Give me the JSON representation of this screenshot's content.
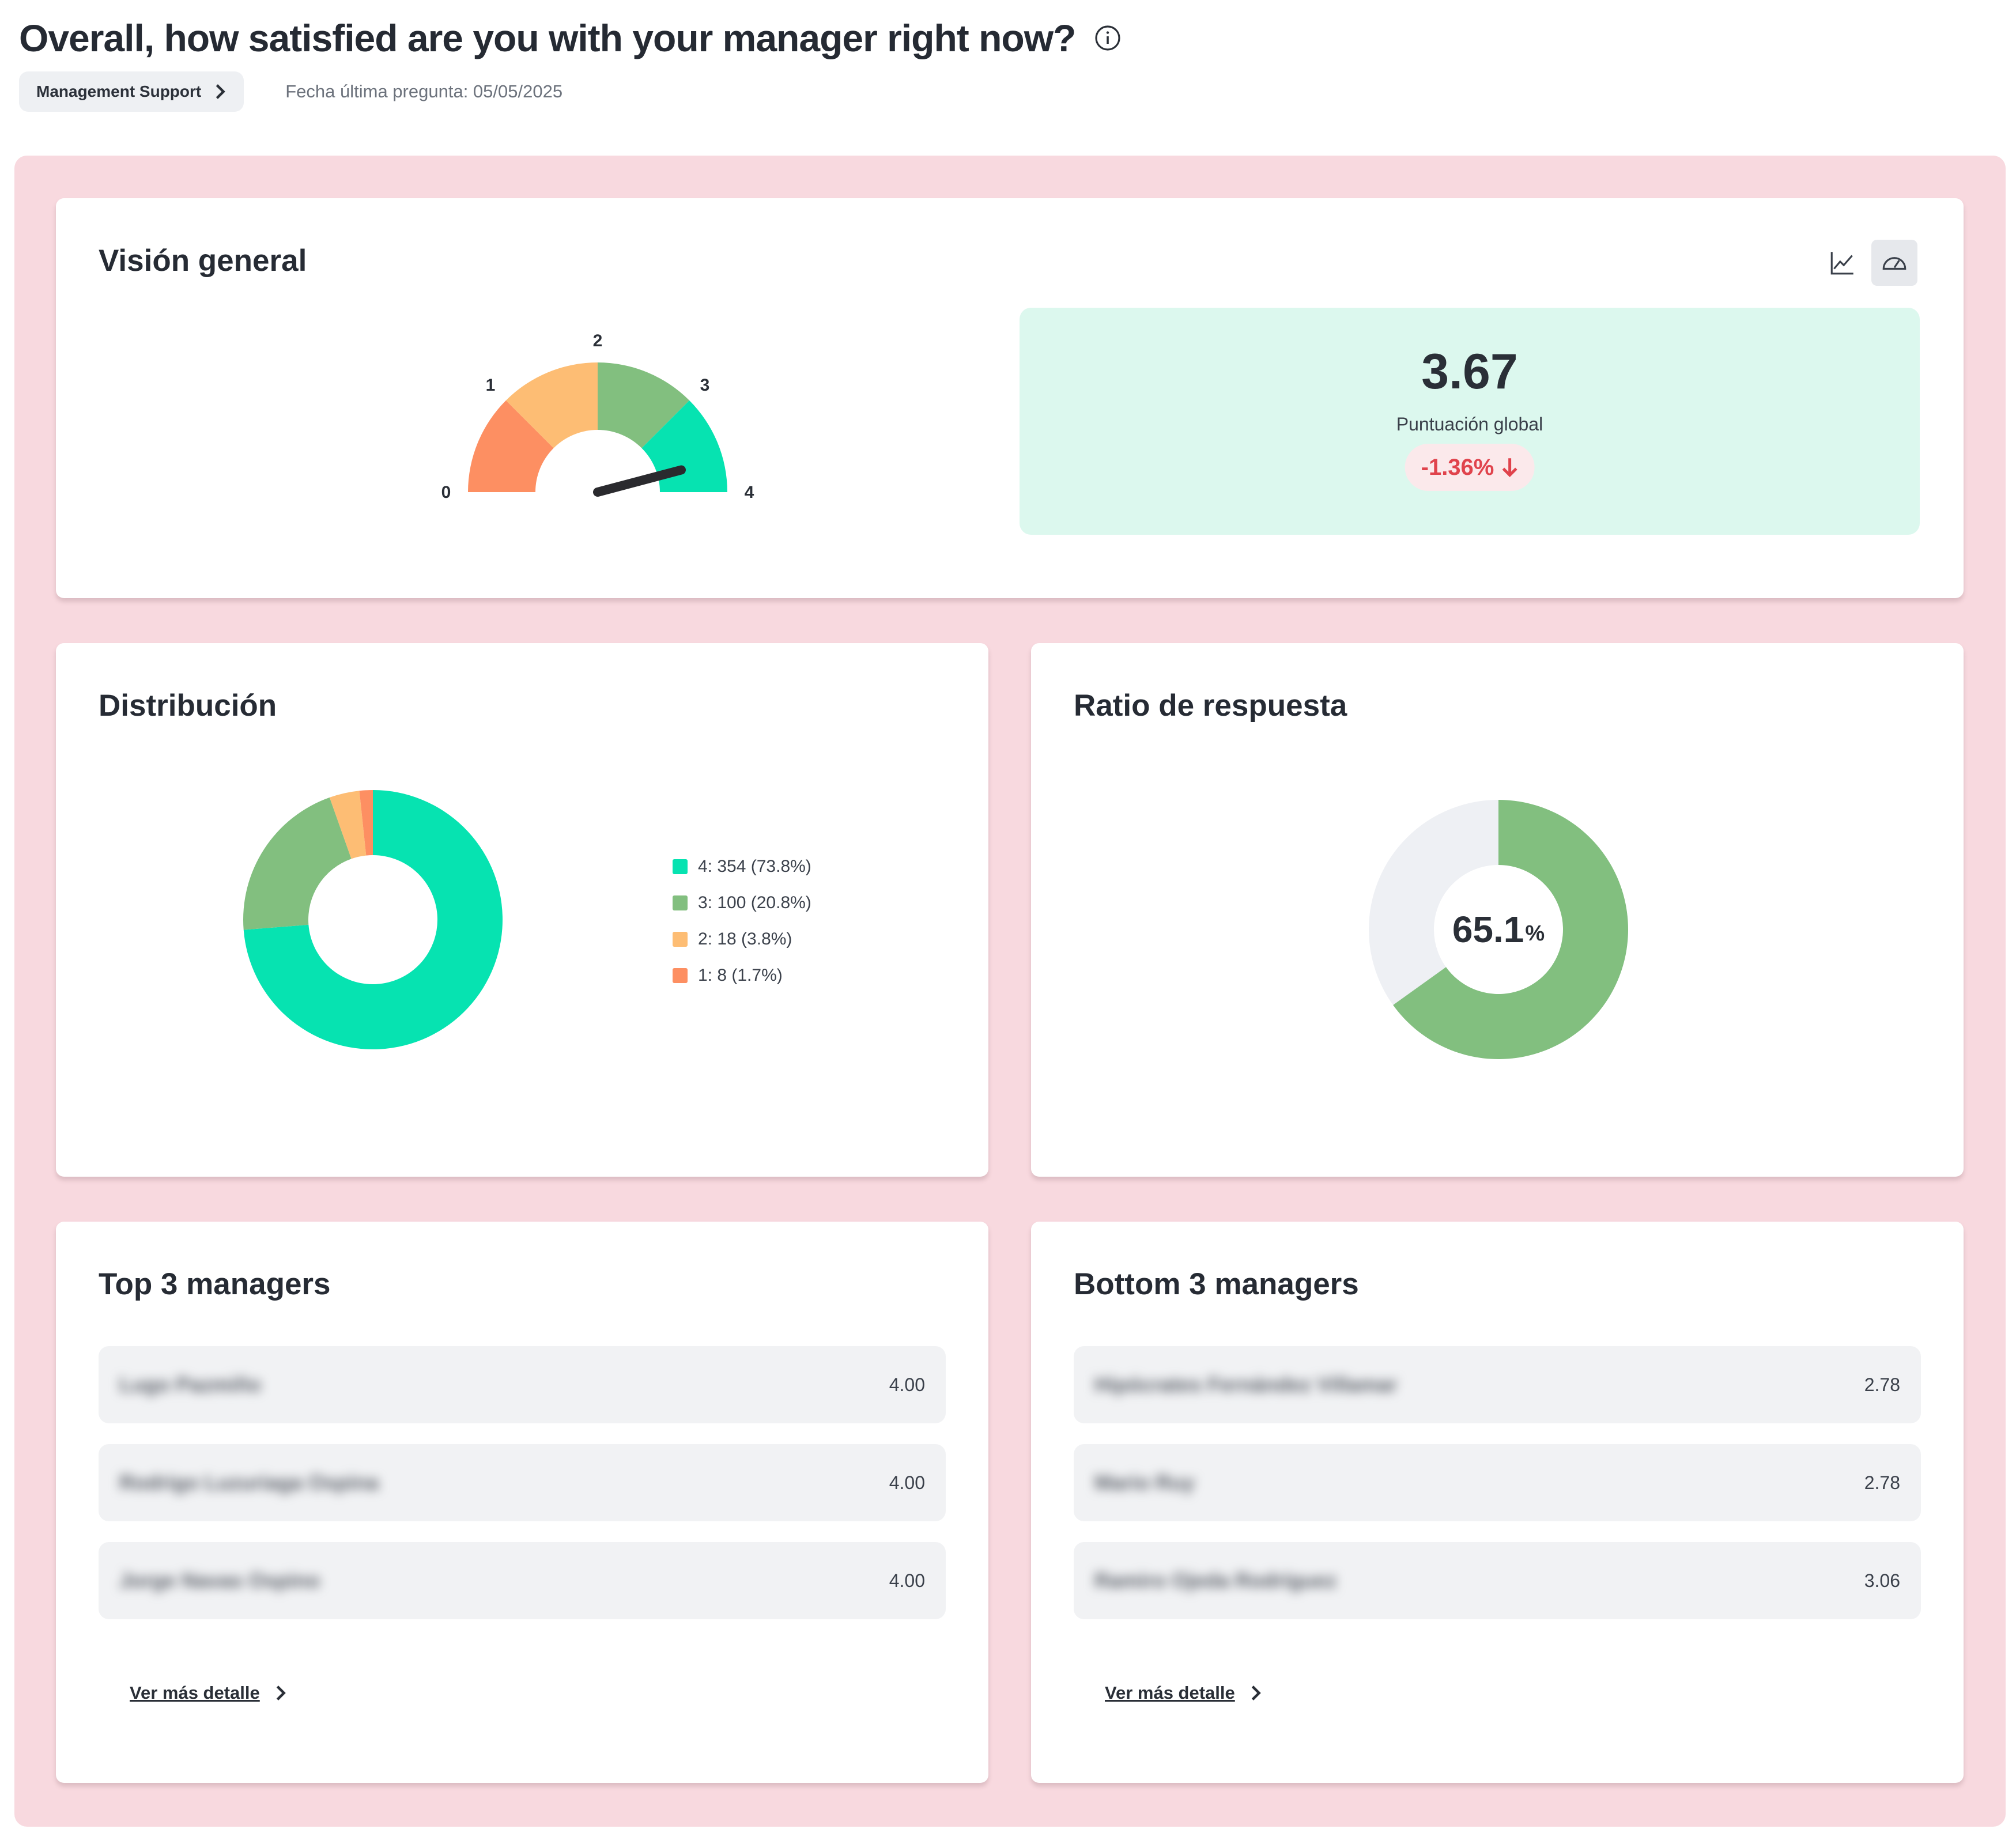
{
  "header": {
    "title": "Overall, how satisfied are you with your manager right now?",
    "category_chip": "Management Support",
    "last_question_date": "Fecha última pregunta: 05/05/2025"
  },
  "overview": {
    "title": "Visión general",
    "score": "3.67",
    "score_label": "Puntuación global",
    "change": "-1.36%",
    "gauge": {
      "min": 0,
      "max": 4,
      "value": 3.67,
      "ticks": [
        "0",
        "1",
        "2",
        "3",
        "4"
      ],
      "segment_colors": [
        "#fd8f62",
        "#fdbd74",
        "#82bf7f",
        "#06e3b1"
      ]
    }
  },
  "distribution": {
    "title": "Distribución",
    "legend": [
      "4: 354 (73.8%)",
      "3: 100 (20.8%)",
      "2: 18 (3.8%)",
      "1: 8 (1.7%)"
    ]
  },
  "response_rate": {
    "title": "Ratio de respuesta",
    "value": "65.1",
    "unit": "%",
    "fraction": 0.651,
    "colors": {
      "filled": "#82bf7f",
      "empty": "#eef0f4"
    }
  },
  "top_managers": {
    "title": "Top 3 managers",
    "rows": [
      {
        "name": "Lugo Pazmiño",
        "score": "4.00"
      },
      {
        "name": "Rodrigo Luzuriaga Ospina",
        "score": "4.00"
      },
      {
        "name": "Jorge Navas Ospino",
        "score": "4.00"
      }
    ],
    "link": "Ver más detalle"
  },
  "bottom_managers": {
    "title": "Bottom 3 managers",
    "rows": [
      {
        "name": "Hipócrates Fernández Villamar",
        "score": "2.78"
      },
      {
        "name": "Mario Ruy",
        "score": "2.78"
      },
      {
        "name": "Ramiro Ojeda Rodríguez",
        "score": "3.06"
      }
    ],
    "link": "Ver más detalle"
  },
  "chart_data": {
    "type": "pie",
    "categories": [
      "4",
      "3",
      "2",
      "1"
    ],
    "values": [
      354,
      100,
      18,
      8
    ],
    "percentages": [
      73.8,
      20.8,
      3.8,
      1.7
    ],
    "colors": [
      "#06e3b1",
      "#82bf7f",
      "#fdbd74",
      "#fd8f62"
    ]
  },
  "icons": {
    "info": "info-icon",
    "chip_arrow": "chevron-right-icon",
    "line_view": "line-chart-icon",
    "gauge_view": "gauge-icon",
    "trend": "arrow-down-icon"
  }
}
